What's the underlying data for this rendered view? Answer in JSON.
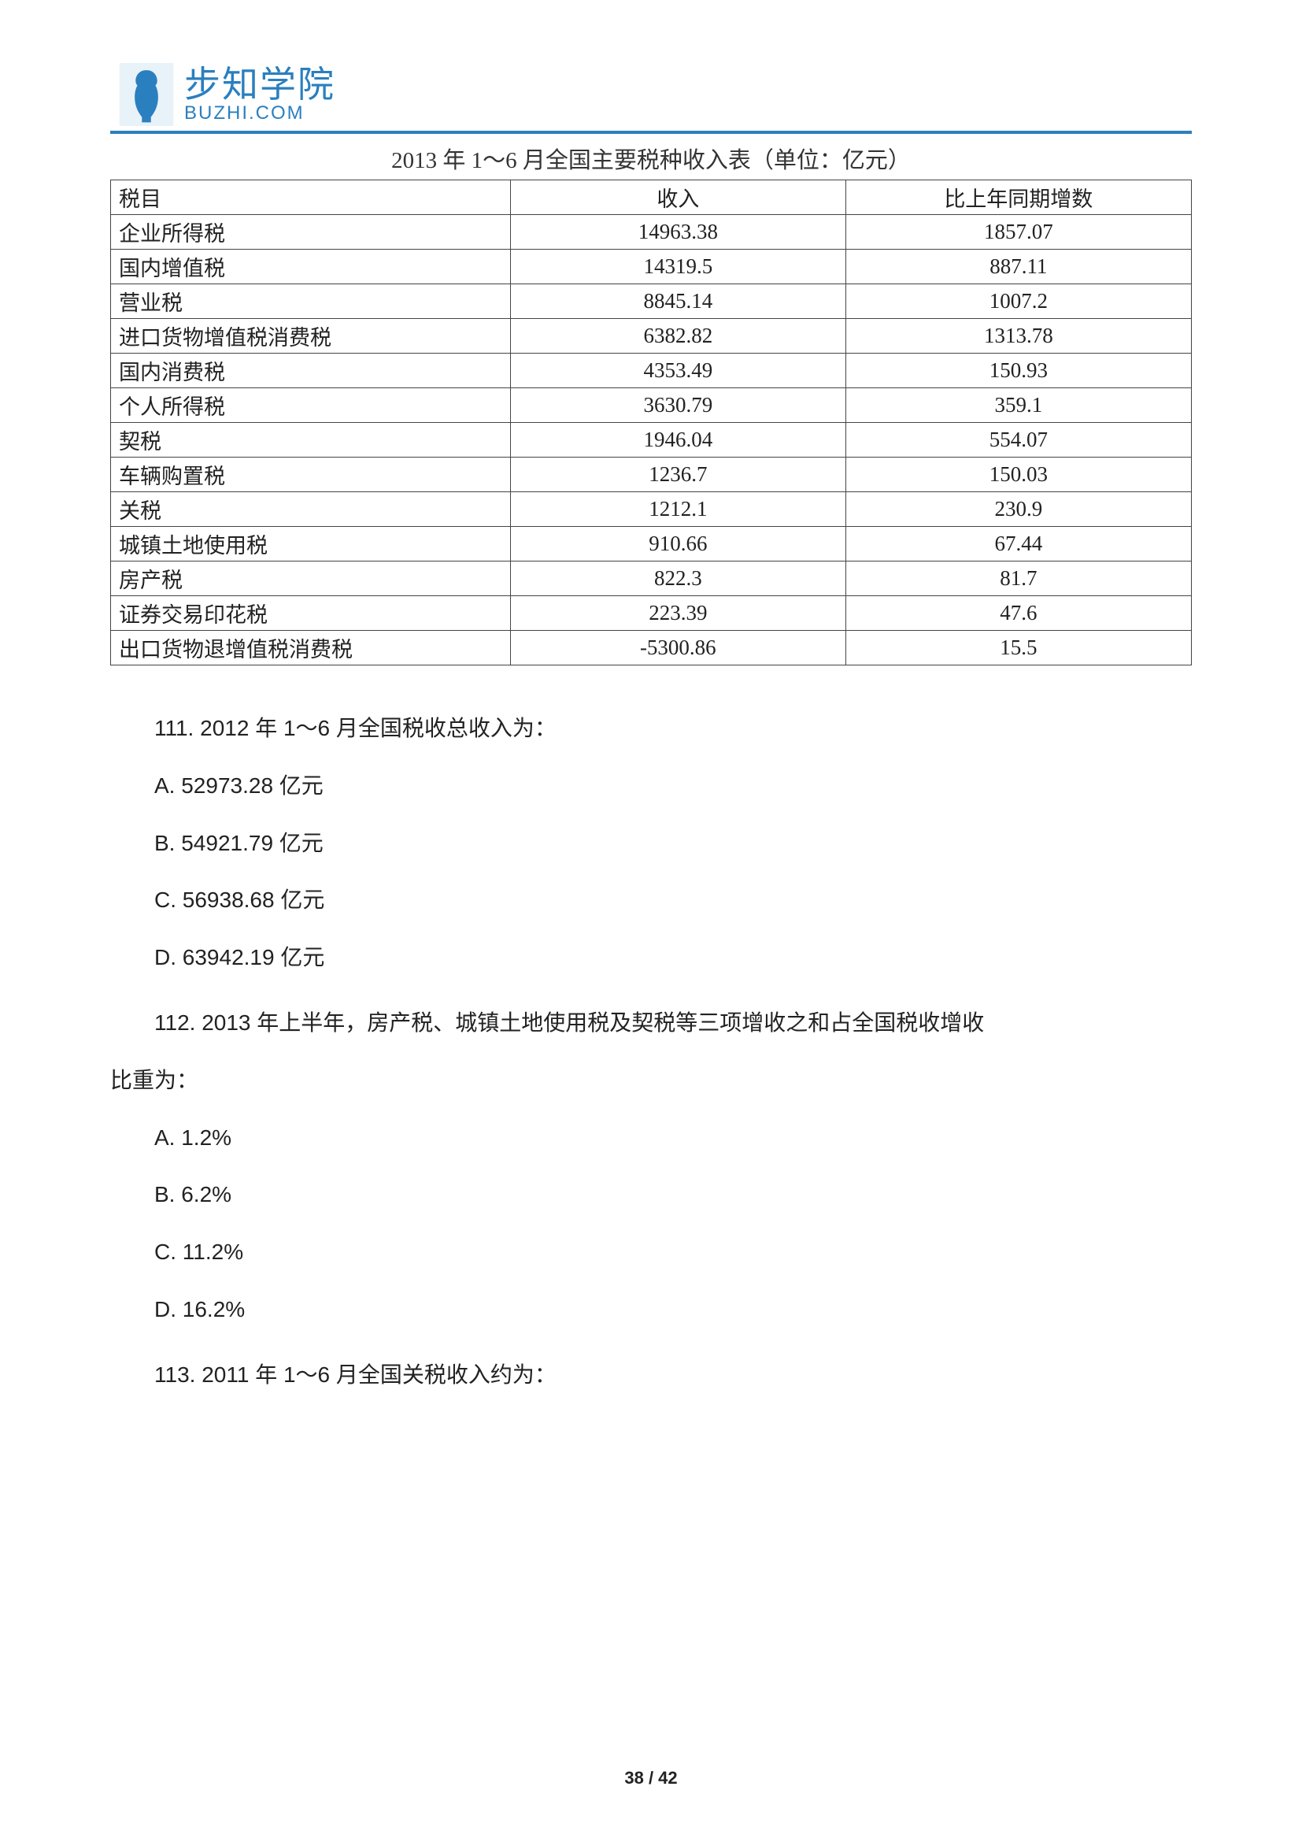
{
  "logo": {
    "cn": "步知学院",
    "en": "BUZHI.COM",
    "brand_color": "#2a7fbf"
  },
  "table": {
    "title": "2013 年 1～6 月全国主要税种收入表（单位：亿元）",
    "columns": [
      "税目",
      "收入",
      "比上年同期增数"
    ],
    "col_widths_pct": [
      37,
      31,
      32
    ],
    "border_color": "#444444",
    "font_family": "SimSun",
    "font_size_pt": 20,
    "rows": [
      {
        "name": "企业所得税",
        "revenue": "14963.38",
        "increase": "1857.07"
      },
      {
        "name": "国内增值税",
        "revenue": "14319.5",
        "increase": "887.11"
      },
      {
        "name": "营业税",
        "revenue": "8845.14",
        "increase": "1007.2"
      },
      {
        "name": "进口货物增值税消费税",
        "revenue": "6382.82",
        "increase": "1313.78"
      },
      {
        "name": "国内消费税",
        "revenue": "4353.49",
        "increase": "150.93"
      },
      {
        "name": "个人所得税",
        "revenue": "3630.79",
        "increase": "359.1"
      },
      {
        "name": "契税",
        "revenue": "1946.04",
        "increase": "554.07"
      },
      {
        "name": "车辆购置税",
        "revenue": "1236.7",
        "increase": "150.03"
      },
      {
        "name": "关税",
        "revenue": "1212.1",
        "increase": "230.9"
      },
      {
        "name": "城镇土地使用税",
        "revenue": "910.66",
        "increase": "67.44"
      },
      {
        "name": "房产税",
        "revenue": "822.3",
        "increase": "81.7"
      },
      {
        "name": "证券交易印花税",
        "revenue": "223.39",
        "increase": "47.6"
      },
      {
        "name": "出口货物退增值税消费税",
        "revenue": "-5300.86",
        "increase": "15.5"
      }
    ]
  },
  "questions": {
    "q111": {
      "stem": "111. 2012 年 1～6 月全国税收总收入为：",
      "A": "A. 52973.28 亿元",
      "B": "B. 54921.79 亿元",
      "C": "C. 56938.68 亿元",
      "D": "D. 63942.19 亿元"
    },
    "q112": {
      "stem_line1": "112. 2013 年上半年，房产税、城镇土地使用税及契税等三项增收之和占全国税收增收",
      "stem_line2": "比重为：",
      "A": "A. 1.2%",
      "B": "B. 6.2%",
      "C": "C. 11.2%",
      "D": "D. 16.2%"
    },
    "q113": {
      "stem": "113. 2011 年 1～6 月全国关税收入约为："
    }
  },
  "footer": {
    "page_current": "38",
    "sep": " / ",
    "page_total": "42"
  }
}
